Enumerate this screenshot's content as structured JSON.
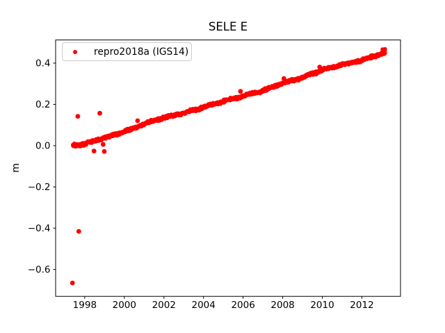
{
  "chart_data": {
    "type": "scatter",
    "title": "SELE E",
    "xlabel": "",
    "ylabel": "m",
    "grid": false,
    "background_color": "#ffffff",
    "axes_color": "#000000",
    "xlim": [
      1996.53,
      2013.95
    ],
    "ylim": [
      -0.73,
      0.512
    ],
    "x_ticks": [
      1998,
      2000,
      2002,
      2004,
      2006,
      2008,
      2010,
      2012
    ],
    "y_ticks": [
      0.4,
      0.2,
      0.0,
      -0.2,
      -0.4,
      -0.6
    ],
    "legend": {
      "label": "repro2018a (IGS14)",
      "marker_color": "#ff0000",
      "position": "upper left"
    },
    "series": [
      {
        "name": "repro2018a (IGS14)",
        "color": "#ff0000",
        "marker": "dot",
        "marker_radius_px": 2.8,
        "outlier_marker_radius_px": 3.4,
        "description": "Dense daily position time series rising nearly linearly from 0.0 m in mid-1997 to ~0.455 m in early 2013",
        "trend_anchors": [
          [
            1997.4,
            0.0
          ],
          [
            1998.0,
            0.008
          ],
          [
            1999.0,
            0.038
          ],
          [
            2000.0,
            0.067
          ],
          [
            2001.0,
            0.105
          ],
          [
            2002.0,
            0.136
          ],
          [
            2003.0,
            0.158
          ],
          [
            2004.0,
            0.186
          ],
          [
            2005.0,
            0.215
          ],
          [
            2006.0,
            0.24
          ],
          [
            2007.0,
            0.266
          ],
          [
            2008.0,
            0.302
          ],
          [
            2009.0,
            0.33
          ],
          [
            2010.0,
            0.366
          ],
          [
            2011.0,
            0.392
          ],
          [
            2012.0,
            0.414
          ],
          [
            2013.17,
            0.452
          ]
        ],
        "sample_step_years": 0.01,
        "noise_sigma_m": 0.0035,
        "annual_signal_amplitude_m": 0.0015,
        "outliers": [
          [
            1997.38,
            -0.665
          ],
          [
            1997.65,
            0.142
          ],
          [
            1997.7,
            -0.415
          ],
          [
            1998.47,
            -0.026
          ],
          [
            1998.76,
            0.157
          ],
          [
            1998.93,
            0.006
          ],
          [
            1998.99,
            -0.028
          ],
          [
            2000.67,
            0.121
          ],
          [
            2005.87,
            0.263
          ],
          [
            2008.06,
            0.325
          ],
          [
            2009.87,
            0.381
          ]
        ],
        "end_cluster": {
          "year_range": [
            2013.0,
            2013.17
          ],
          "value_range": [
            0.443,
            0.468
          ],
          "count": 22
        },
        "start_cluster": {
          "year_range": [
            1997.4,
            1997.52
          ],
          "value_range": [
            -0.01,
            0.012
          ],
          "count": 10
        }
      }
    ]
  }
}
